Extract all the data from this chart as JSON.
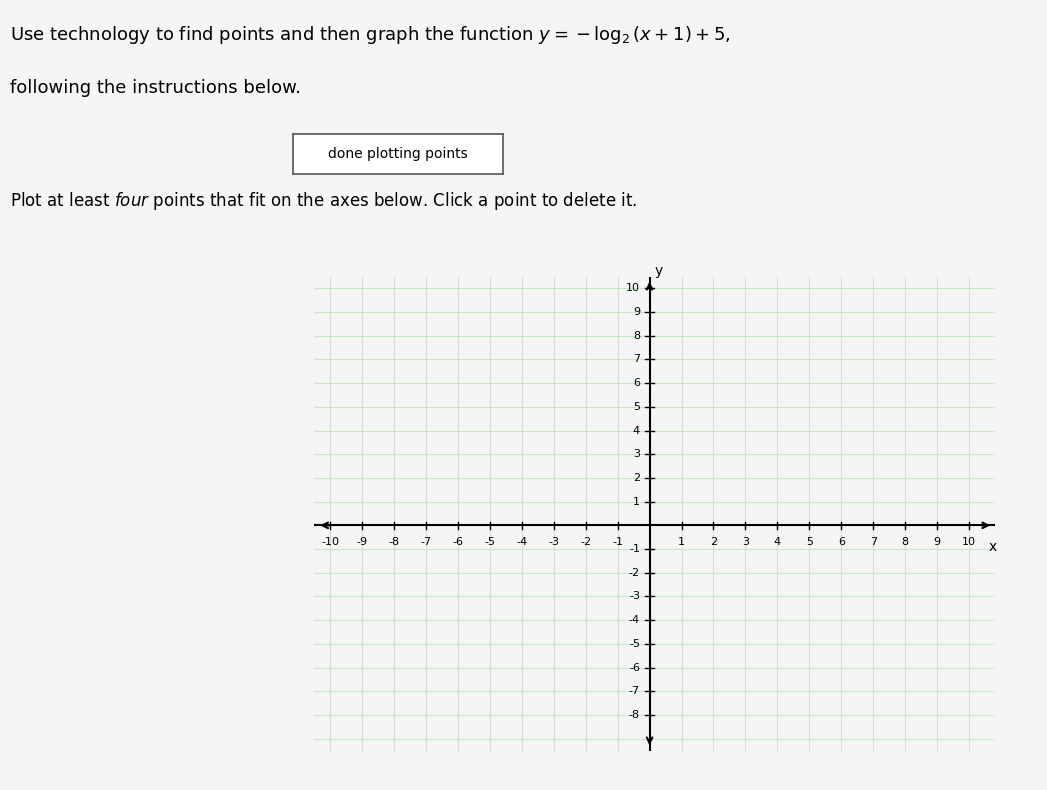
{
  "title_text": "Use technology to find points and then graph the function $y = -\\log_2(x+1)+5$,",
  "title_line2": "following the instructions below.",
  "button_text": "done plotting points",
  "instruction_text": "Plot at least \\textit{four} points that fit on the axes below. Click a point to delete it.",
  "xmin": -10,
  "xmax": 10,
  "ymin": -9,
  "ymax": 10,
  "xticks": [
    -10,
    -9,
    -8,
    -7,
    -6,
    -5,
    -4,
    -3,
    -2,
    -1,
    1,
    2,
    3,
    4,
    5,
    6,
    7,
    8,
    9,
    10
  ],
  "yticks": [
    -8,
    -7,
    -6,
    -5,
    -4,
    -3,
    -2,
    -1,
    1,
    2,
    3,
    4,
    5,
    6,
    7,
    8,
    9,
    10
  ],
  "grid_color_major": "#c8e6c9",
  "grid_color_minor": "#f8f8f8",
  "bg_color": "#f5f5f5",
  "plot_bg": "#ffffff",
  "axis_color": "#000000",
  "tick_fontsize": 8,
  "xlabel": "x",
  "ylabel": "y",
  "button_color": "#ffffff",
  "button_edge_color": "#555555"
}
